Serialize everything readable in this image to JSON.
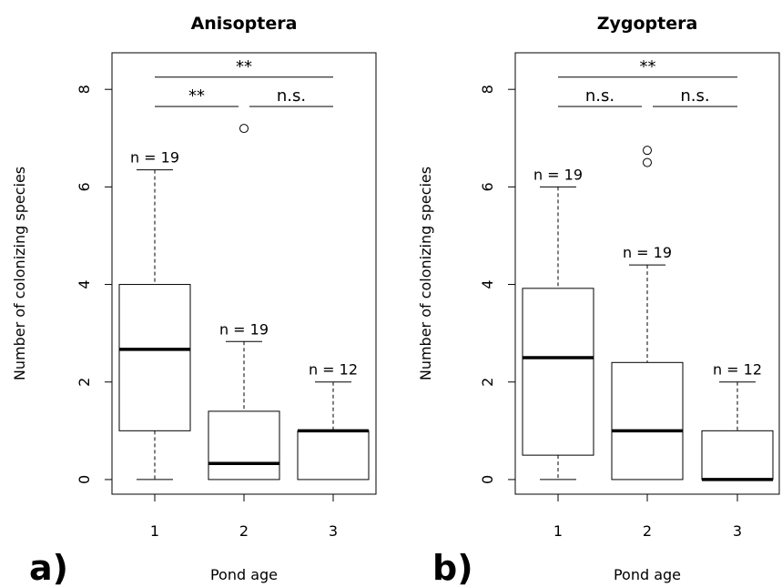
{
  "chart_data": [
    {
      "type": "box",
      "panel_label": "a)",
      "title": "Anisoptera",
      "xlabel": "Pond age",
      "ylabel": "Number of colonizing species",
      "categories": [
        "1",
        "2",
        "3"
      ],
      "y_ticks": [
        "0",
        "2",
        "4",
        "6",
        "8"
      ],
      "ylim": [
        -0.3,
        8.75
      ],
      "boxes": [
        {
          "category": "1",
          "min": 0,
          "q1": 1,
          "median": 2.67,
          "q3": 4,
          "max": 6.35,
          "outliers": [],
          "n_label": "n =  19"
        },
        {
          "category": "2",
          "min": 0,
          "q1": 0,
          "median": 0.33,
          "q3": 1.4,
          "max": 2.83,
          "outliers": [
            7.2
          ],
          "n_label": "n =  19"
        },
        {
          "category": "3",
          "min": 0,
          "q1": 0,
          "median": 1.0,
          "q3": 1.0,
          "max": 2.0,
          "outliers": [],
          "n_label": "n =  12"
        }
      ],
      "comparisons": [
        {
          "from": 1,
          "to": 3,
          "y": 8.25,
          "label": "**"
        },
        {
          "from": 1,
          "to": 2,
          "y": 7.65,
          "label": "**"
        },
        {
          "from": 2,
          "to": 3,
          "y": 7.65,
          "label": "n.s."
        }
      ]
    },
    {
      "type": "box",
      "panel_label": "b)",
      "title": "Zygoptera",
      "xlabel": "Pond age",
      "ylabel": "Number of colonizing species",
      "categories": [
        "1",
        "2",
        "3"
      ],
      "y_ticks": [
        "0",
        "2",
        "4",
        "6",
        "8"
      ],
      "ylim": [
        -0.3,
        8.75
      ],
      "boxes": [
        {
          "category": "1",
          "min": 0,
          "q1": 0.5,
          "median": 2.5,
          "q3": 3.92,
          "max": 6.0,
          "outliers": [],
          "n_label": "n =  19"
        },
        {
          "category": "2",
          "min": 0,
          "q1": 0,
          "median": 1.0,
          "q3": 2.4,
          "max": 4.4,
          "outliers": [
            6.5,
            6.75
          ],
          "n_label": "n =  19"
        },
        {
          "category": "3",
          "min": 0,
          "q1": 0,
          "median": 0,
          "q3": 1.0,
          "max": 2.0,
          "outliers": [],
          "n_label": "n =  12"
        }
      ],
      "comparisons": [
        {
          "from": 1,
          "to": 3,
          "y": 8.25,
          "label": "**"
        },
        {
          "from": 1,
          "to": 2,
          "y": 7.65,
          "label": "n.s."
        },
        {
          "from": 2,
          "to": 3,
          "y": 7.65,
          "label": "n.s."
        }
      ]
    }
  ]
}
